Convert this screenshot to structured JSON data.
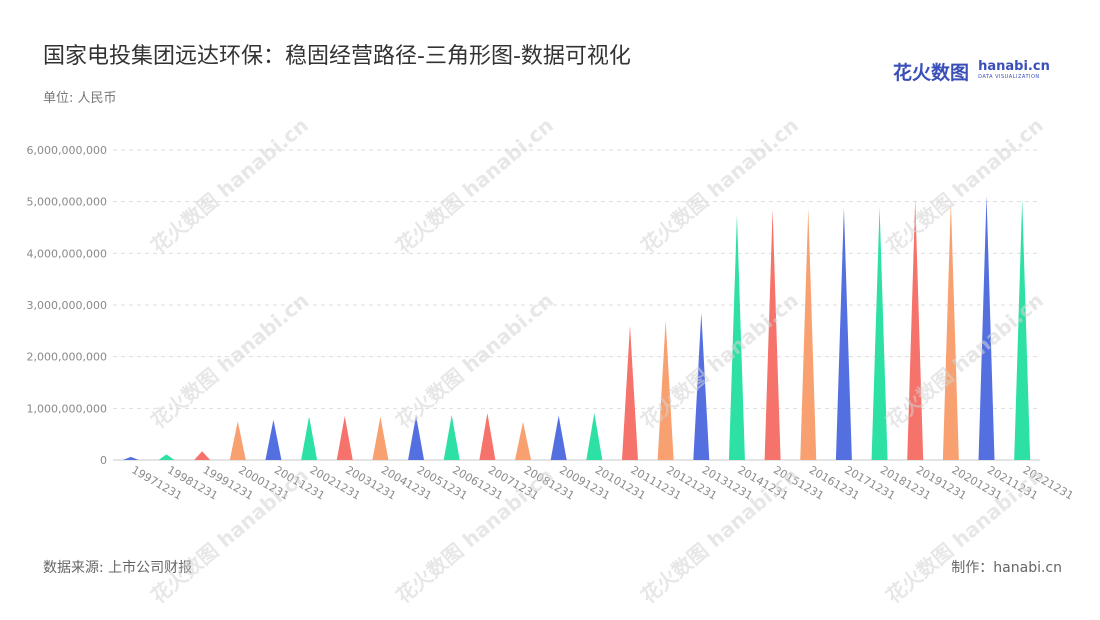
{
  "header": {
    "title": "国家电投集团远达环保：稳固经营路径-三角形图-数据可视化",
    "unit": "单位: 人民币"
  },
  "logo": {
    "cn": "花火数图",
    "en": "hanabi.cn",
    "en_sub": "DATA VISUALIZATION"
  },
  "footer": {
    "source": "数据来源: 上市公司财报",
    "maker": "制作：hanabi.cn"
  },
  "colors": {
    "palette": [
      "#5470e0",
      "#2de0a6",
      "#f6736b",
      "#f8a06f"
    ],
    "grid": "#dddddd",
    "axis_text": "#8a8a8a"
  },
  "chart_data": {
    "type": "bar",
    "mark": "triangle",
    "categories": [
      "19971231",
      "19981231",
      "19991231",
      "20001231",
      "20011231",
      "20021231",
      "20031231",
      "20041231",
      "20051231",
      "20061231",
      "20071231",
      "20081231",
      "20091231",
      "20101231",
      "20111231",
      "20121231",
      "20131231",
      "20141231",
      "20151231",
      "20161231",
      "20171231",
      "20181231",
      "20191231",
      "20201231",
      "20211231",
      "20221231"
    ],
    "values": [
      60000000,
      110000000,
      170000000,
      750000000,
      780000000,
      840000000,
      850000000,
      840000000,
      860000000,
      870000000,
      910000000,
      740000000,
      860000000,
      910000000,
      2600000000,
      2700000000,
      2850000000,
      4750000000,
      4850000000,
      4870000000,
      4880000000,
      4900000000,
      5050000000,
      5000000000,
      5120000000,
      5050000000
    ],
    "ylim": [
      0,
      6000000000
    ],
    "yticks": [
      "0",
      "1,000,000,000",
      "2,000,000,000",
      "3,000,000,000",
      "4,000,000,000",
      "5,000,000,000",
      "6,000,000,000"
    ],
    "grid": true
  }
}
